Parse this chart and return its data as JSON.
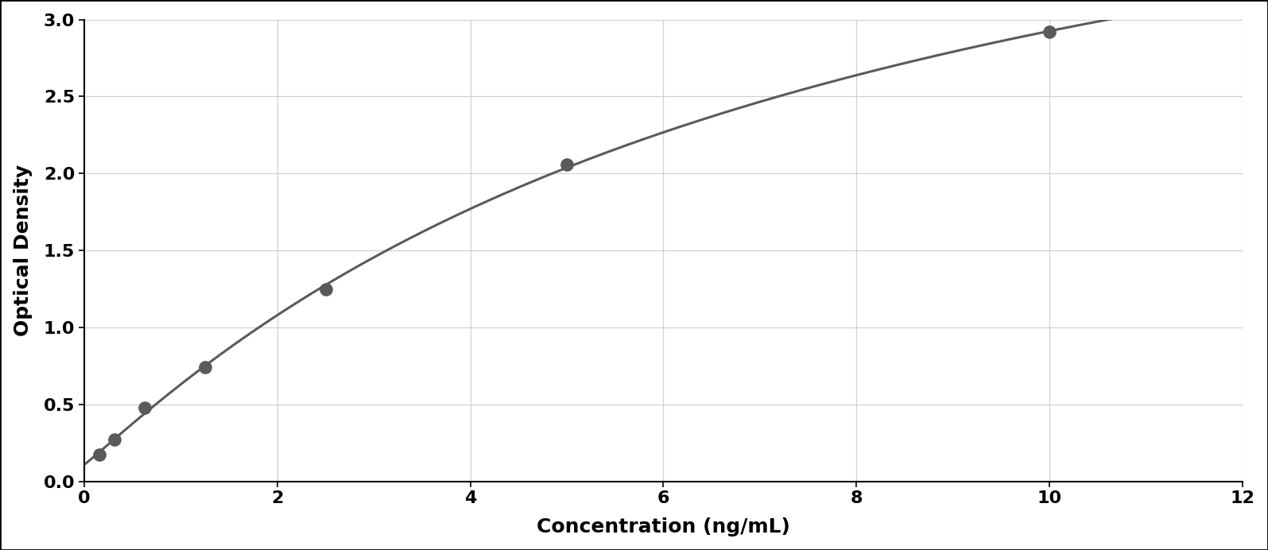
{
  "x_data": [
    0.156,
    0.313,
    0.625,
    1.25,
    2.5,
    5.0,
    10.0
  ],
  "y_data": [
    0.176,
    0.27,
    0.48,
    0.74,
    1.25,
    2.06,
    2.92
  ],
  "xlabel": "Concentration (ng/mL)",
  "ylabel": "Optical Density",
  "xlim": [
    0,
    12
  ],
  "ylim": [
    0,
    3
  ],
  "xticks": [
    0,
    2,
    4,
    6,
    8,
    10,
    12
  ],
  "yticks": [
    0,
    0.5,
    1.0,
    1.5,
    2.0,
    2.5,
    3.0
  ],
  "data_color": "#5a5a5a",
  "line_color": "#5a5a5a",
  "background_color": "#ffffff",
  "plot_bg_color": "#ffffff",
  "grid_color": "#d0d0d0",
  "label_fontsize": 18,
  "tick_fontsize": 16,
  "marker_size": 11,
  "line_width": 2.2,
  "figure_bg": "#ffffff",
  "outer_border_color": "#000000",
  "outer_border_lw": 2.0
}
